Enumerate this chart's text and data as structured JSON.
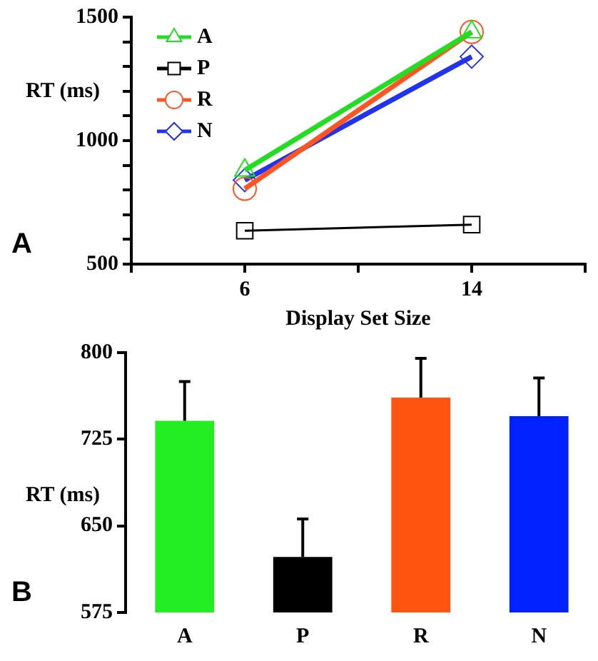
{
  "chart_data": [
    {
      "type": "line",
      "ylabel": "RT (ms)",
      "xlabel": "Display Set Size",
      "annotations": [
        "A"
      ],
      "x": [
        6,
        14
      ],
      "xlim": [
        2,
        18
      ],
      "xticks": [
        {
          "value": 2,
          "label": null
        },
        6,
        {
          "value": 10,
          "label": null
        },
        14,
        {
          "value": 18,
          "label": null
        }
      ],
      "ylim": [
        500,
        1500
      ],
      "yticks": [
        500,
        {
          "value": 600,
          "label": null
        },
        {
          "value": 700,
          "label": null
        },
        {
          "value": 800,
          "label": null
        },
        {
          "value": 900,
          "label": null
        },
        1000,
        {
          "value": 1100,
          "label": null
        },
        {
          "value": 1200,
          "label": null
        },
        {
          "value": 1300,
          "label": null
        },
        {
          "value": 1400,
          "label": null
        },
        1500
      ],
      "grid": false,
      "legend": "top left",
      "series": [
        {
          "name": "A",
          "color": "#22dd22",
          "marker": "triangle",
          "values": [
            880,
            1440
          ]
        },
        {
          "name": "P",
          "color": "#000000",
          "marker": "square",
          "values": [
            635,
            660
          ]
        },
        {
          "name": "R",
          "color": "#ff5522",
          "marker": "circle",
          "values": [
            805,
            1440
          ]
        },
        {
          "name": "N",
          "color": "#2233ee",
          "marker": "diamond",
          "values": [
            840,
            1340
          ]
        }
      ]
    },
    {
      "type": "bar",
      "ylabel": "RT (ms)",
      "annotations": [
        "B"
      ],
      "categories": [
        "A",
        "P",
        "R",
        "N"
      ],
      "values": [
        741,
        623,
        761,
        745
      ],
      "colors": [
        "#22ee22",
        "#000000",
        "#ff5511",
        "#0022ff"
      ],
      "errors": [
        [
          741,
          775
        ],
        [
          623,
          656
        ],
        [
          761,
          795
        ],
        [
          745,
          778
        ]
      ],
      "ylim": [
        575,
        800
      ],
      "yticks": [
        575,
        650,
        725,
        800
      ],
      "grid": false,
      "legend": false
    }
  ]
}
